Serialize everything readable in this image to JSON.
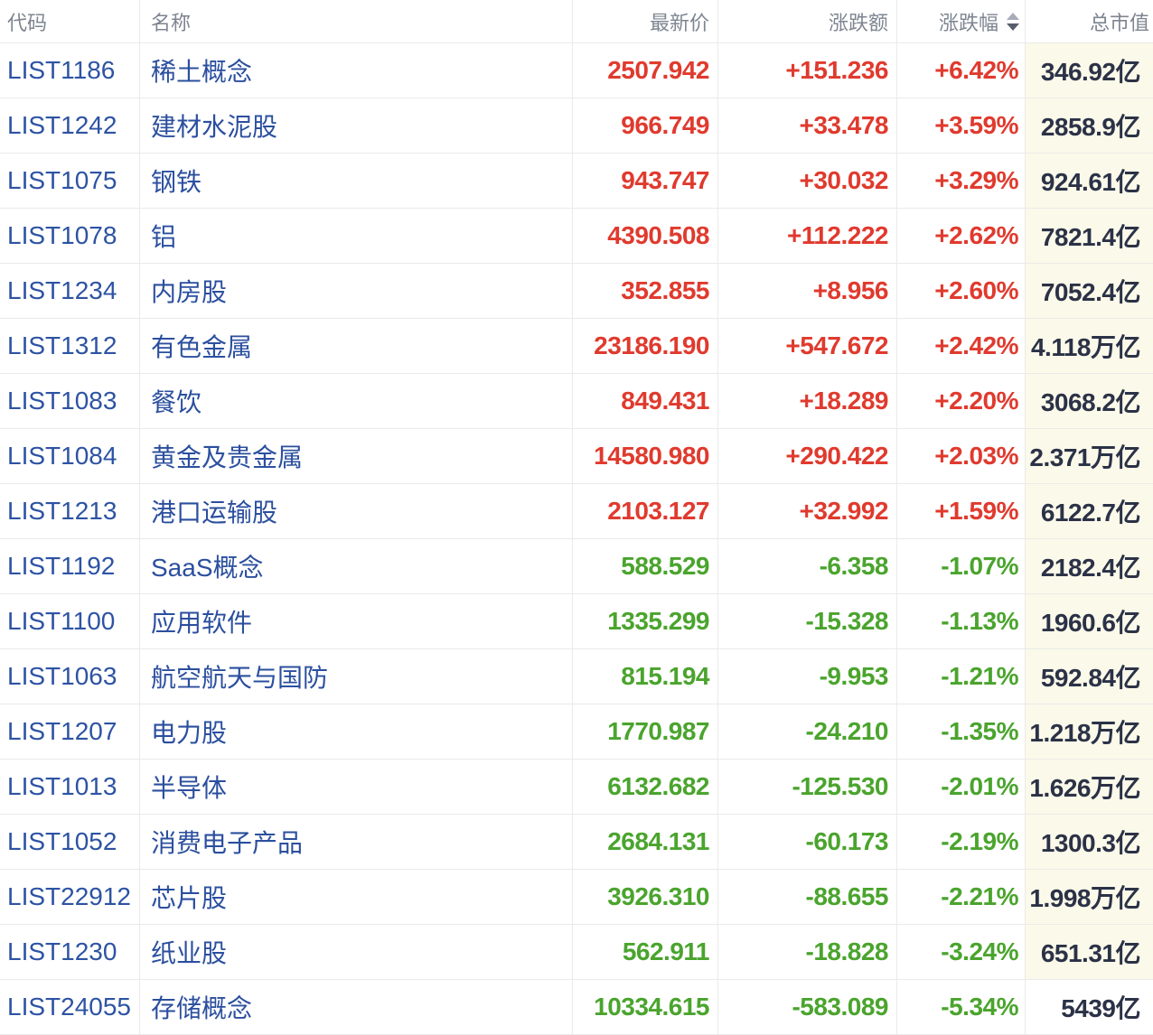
{
  "table": {
    "columns": [
      {
        "key": "code",
        "label": "代码",
        "align": "left"
      },
      {
        "key": "name",
        "label": "名称",
        "align": "left"
      },
      {
        "key": "price",
        "label": "最新价",
        "align": "right"
      },
      {
        "key": "change",
        "label": "涨跌额",
        "align": "right"
      },
      {
        "key": "pct",
        "label": "涨跌幅",
        "align": "right",
        "sortable": true,
        "sort_direction": "desc"
      },
      {
        "key": "mktcap",
        "label": "总市值",
        "align": "right"
      }
    ],
    "rows": [
      {
        "code": "LIST1186",
        "name": "稀土概念",
        "price": "2507.942",
        "change": "+151.236",
        "pct": "+6.42%",
        "mktcap": "346.92亿",
        "trend": "up"
      },
      {
        "code": "LIST1242",
        "name": "建材水泥股",
        "price": "966.749",
        "change": "+33.478",
        "pct": "+3.59%",
        "mktcap": "2858.9亿",
        "trend": "up"
      },
      {
        "code": "LIST1075",
        "name": "钢铁",
        "price": "943.747",
        "change": "+30.032",
        "pct": "+3.29%",
        "mktcap": "924.61亿",
        "trend": "up"
      },
      {
        "code": "LIST1078",
        "name": "铝",
        "price": "4390.508",
        "change": "+112.222",
        "pct": "+2.62%",
        "mktcap": "7821.4亿",
        "trend": "up"
      },
      {
        "code": "LIST1234",
        "name": "内房股",
        "price": "352.855",
        "change": "+8.956",
        "pct": "+2.60%",
        "mktcap": "7052.4亿",
        "trend": "up"
      },
      {
        "code": "LIST1312",
        "name": "有色金属",
        "price": "23186.190",
        "change": "+547.672",
        "pct": "+2.42%",
        "mktcap": "4.118万亿",
        "trend": "up"
      },
      {
        "code": "LIST1083",
        "name": "餐饮",
        "price": "849.431",
        "change": "+18.289",
        "pct": "+2.20%",
        "mktcap": "3068.2亿",
        "trend": "up"
      },
      {
        "code": "LIST1084",
        "name": "黄金及贵金属",
        "price": "14580.980",
        "change": "+290.422",
        "pct": "+2.03%",
        "mktcap": "2.371万亿",
        "trend": "up"
      },
      {
        "code": "LIST1213",
        "name": "港口运输股",
        "price": "2103.127",
        "change": "+32.992",
        "pct": "+1.59%",
        "mktcap": "6122.7亿",
        "trend": "up"
      },
      {
        "code": "LIST1192",
        "name": "SaaS概念",
        "price": "588.529",
        "change": "-6.358",
        "pct": "-1.07%",
        "mktcap": "2182.4亿",
        "trend": "down"
      },
      {
        "code": "LIST1100",
        "name": "应用软件",
        "price": "1335.299",
        "change": "-15.328",
        "pct": "-1.13%",
        "mktcap": "1960.6亿",
        "trend": "down"
      },
      {
        "code": "LIST1063",
        "name": "航空航天与国防",
        "price": "815.194",
        "change": "-9.953",
        "pct": "-1.21%",
        "mktcap": "592.84亿",
        "trend": "down"
      },
      {
        "code": "LIST1207",
        "name": "电力股",
        "price": "1770.987",
        "change": "-24.210",
        "pct": "-1.35%",
        "mktcap": "1.218万亿",
        "trend": "down"
      },
      {
        "code": "LIST1013",
        "name": "半导体",
        "price": "6132.682",
        "change": "-125.530",
        "pct": "-2.01%",
        "mktcap": "1.626万亿",
        "trend": "down"
      },
      {
        "code": "LIST1052",
        "name": "消费电子产品",
        "price": "2684.131",
        "change": "-60.173",
        "pct": "-2.19%",
        "mktcap": "1300.3亿",
        "trend": "down"
      },
      {
        "code": "LIST22912",
        "name": "芯片股",
        "price": "3926.310",
        "change": "-88.655",
        "pct": "-2.21%",
        "mktcap": "1.998万亿",
        "trend": "down"
      },
      {
        "code": "LIST1230",
        "name": "纸业股",
        "price": "562.911",
        "change": "-18.828",
        "pct": "-3.24%",
        "mktcap": "651.31亿",
        "trend": "down"
      },
      {
        "code": "LIST24055",
        "name": "存储概念",
        "price": "10334.615",
        "change": "-583.089",
        "pct": "-5.34%",
        "mktcap": "5439亿",
        "trend": "down"
      }
    ]
  },
  "colors": {
    "up_red": "#e03a2e",
    "down_green": "#4aa42d",
    "code_blue": "#2d53a3",
    "name_blue": "#2b4f9f",
    "market_cap_text": "#2b3247",
    "market_cap_column_bg": "#fbf9e9",
    "header_text": "#7d8591",
    "row_border": "#eaeaea",
    "sort_arrow_inactive": "#a8acb8",
    "sort_arrow_active": "#565d6b"
  }
}
